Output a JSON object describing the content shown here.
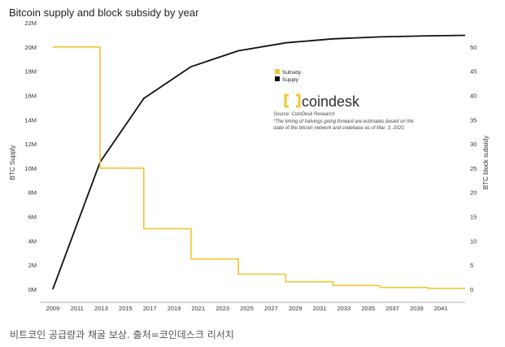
{
  "caption": "비트코인 공급량과 채굴 보상. 출처=코인데스크 리서치",
  "colors": {
    "supply": "#111111",
    "subsidy": "#f2c62f",
    "brand_logo": "#f2c62f"
  },
  "brand": {
    "name": "coindesk",
    "logo_icon": "coindesk-logo-icon"
  },
  "chart_data": {
    "type": "line",
    "title": "Bitcoin supply and block subsidy by year",
    "xlabel": "",
    "ylabel": "BTC Supply",
    "y2label": "BTC block subsidy",
    "x_ticks": [
      "2009",
      "2011",
      "2013",
      "2015",
      "2017",
      "2019",
      "2021",
      "2023",
      "2025",
      "2027",
      "2029",
      "2031",
      "2033",
      "2035",
      "2037",
      "2039",
      "2041"
    ],
    "xlim": [
      2008.0,
      2043.0
    ],
    "ylim": [
      0,
      22000000
    ],
    "y_ticks": [
      "0M",
      "2M",
      "4M",
      "6M",
      "8M",
      "10M",
      "12M",
      "14M",
      "16M",
      "18M",
      "20M",
      "22M"
    ],
    "y2lim": [
      0,
      55
    ],
    "y2_ticks": [
      "0",
      "5",
      "10",
      "15",
      "20",
      "25",
      "30",
      "35",
      "40",
      "45",
      "50"
    ],
    "grid": false,
    "legend": {
      "position": "top-right",
      "entries": [
        "Subsidy",
        "Supply"
      ]
    },
    "source": "Source: CoinDesk Research",
    "note": "*The timing of halvings going forward are estimates based on the state of the bitcoin network and codebase as of Mar. 3, 2020.",
    "series": [
      {
        "name": "Supply",
        "axis": "left",
        "x": [
          2009,
          2012.9,
          2016.5,
          2020.4,
          2024.3,
          2028.2,
          2032.1,
          2036.0,
          2039.9,
          2043.0
        ],
        "y": [
          0,
          10500000,
          15750000,
          18375000,
          19687500,
          20343750,
          20671875,
          20835938,
          20917969,
          20960000
        ]
      },
      {
        "name": "Subsidy",
        "axis": "right",
        "step": true,
        "x": [
          2009,
          2012.9,
          2016.5,
          2020.4,
          2024.3,
          2028.2,
          2032.1,
          2036.0,
          2039.9,
          2043.0
        ],
        "y": [
          50,
          25,
          12.5,
          6.25,
          3.125,
          1.5625,
          0.78125,
          0.390625,
          0.1953125,
          0.1953125
        ]
      }
    ]
  }
}
